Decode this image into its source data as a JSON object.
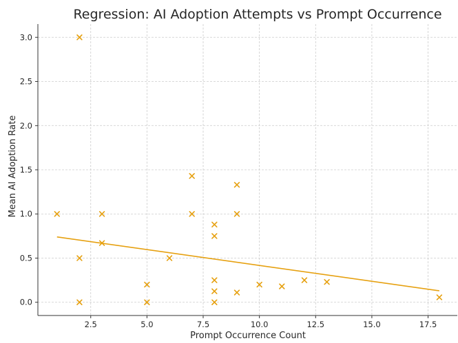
{
  "chart_data": {
    "type": "scatter",
    "title": "Regression: AI Adoption Attempts vs Prompt Occurrence",
    "xlabel": "Prompt Occurrence Count",
    "ylabel": "Mean AI Adoption Rate",
    "xlim": [
      0.15,
      18.8
    ],
    "ylim": [
      -0.15,
      3.15
    ],
    "x_ticks": [
      2.5,
      5.0,
      7.5,
      10.0,
      12.5,
      15.0,
      17.5
    ],
    "x_tick_labels": [
      "2.5",
      "5.0",
      "7.5",
      "10.0",
      "12.5",
      "15.0",
      "17.5"
    ],
    "y_ticks": [
      0.0,
      0.5,
      1.0,
      1.5,
      2.0,
      2.5,
      3.0
    ],
    "y_tick_labels": [
      "0.0",
      "0.5",
      "1.0",
      "1.5",
      "2.0",
      "2.5",
      "3.0"
    ],
    "grid": true,
    "marker": "x",
    "color": "#e6a00f",
    "points": [
      {
        "x": 1,
        "y": 1.0
      },
      {
        "x": 2,
        "y": 3.0
      },
      {
        "x": 2,
        "y": 0.5
      },
      {
        "x": 2,
        "y": 0.0
      },
      {
        "x": 3,
        "y": 1.0
      },
      {
        "x": 3,
        "y": 0.67
      },
      {
        "x": 5,
        "y": 0.2
      },
      {
        "x": 5,
        "y": 0.0
      },
      {
        "x": 6,
        "y": 0.5
      },
      {
        "x": 7,
        "y": 1.43
      },
      {
        "x": 7,
        "y": 1.0
      },
      {
        "x": 8,
        "y": 0.88
      },
      {
        "x": 8,
        "y": 0.75
      },
      {
        "x": 8,
        "y": 0.25
      },
      {
        "x": 8,
        "y": 0.125
      },
      {
        "x": 8,
        "y": 0.0
      },
      {
        "x": 9,
        "y": 1.33
      },
      {
        "x": 9,
        "y": 1.0
      },
      {
        "x": 9,
        "y": 0.11
      },
      {
        "x": 10,
        "y": 0.2
      },
      {
        "x": 11,
        "y": 0.18
      },
      {
        "x": 12,
        "y": 0.25
      },
      {
        "x": 13,
        "y": 0.23
      },
      {
        "x": 18,
        "y": 0.056
      }
    ],
    "regression_line": {
      "x": [
        1,
        18
      ],
      "y": [
        0.74,
        0.13
      ]
    }
  }
}
